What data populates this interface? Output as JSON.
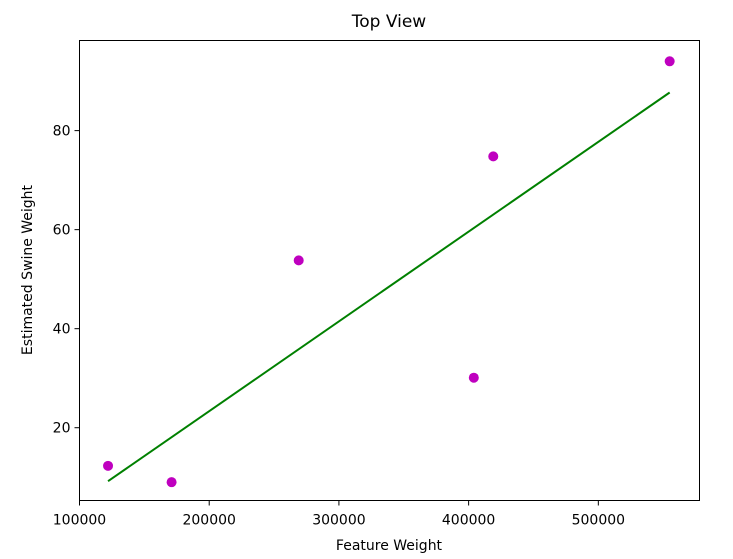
{
  "chart_data": {
    "type": "scatter",
    "title": "Top View",
    "xlabel": "Feature Weight",
    "ylabel": "Estimated Swine Weight",
    "xlim": [
      100000,
      578000
    ],
    "ylim": [
      5.3,
      98.2
    ],
    "xticks": [
      100000,
      200000,
      300000,
      400000,
      500000
    ],
    "yticks": [
      20,
      40,
      60,
      80
    ],
    "grid": false,
    "series": [
      {
        "type": "scatter",
        "color": "#bf00bf",
        "x": [
          122000,
          171000,
          269000,
          404000,
          419000,
          555000
        ],
        "y": [
          12.3,
          9.0,
          53.8,
          30.1,
          74.8,
          94.0
        ]
      },
      {
        "type": "line",
        "color": "#008000",
        "x": [
          122000,
          555000
        ],
        "y": [
          9.2,
          87.7
        ]
      }
    ]
  }
}
